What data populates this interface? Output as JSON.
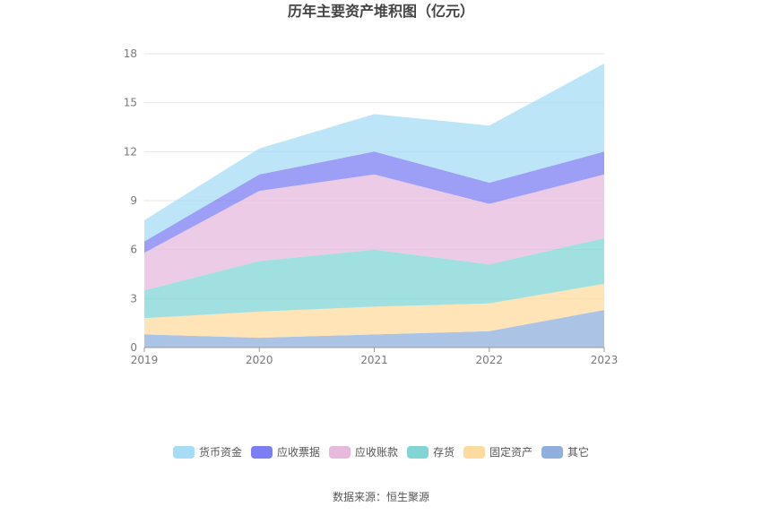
{
  "chart_data": {
    "type": "area",
    "stacked": true,
    "title": "历年主要资产堆积图（亿元）",
    "xlabel": "",
    "ylabel": "",
    "categories": [
      "2019",
      "2020",
      "2021",
      "2022",
      "2023"
    ],
    "ylim": [
      0,
      18
    ],
    "yticks": [
      0,
      3,
      6,
      9,
      12,
      15,
      18
    ],
    "grid": true,
    "legend_position": "bottom",
    "series": [
      {
        "name": "其它",
        "color": "#8fb0dc",
        "values": [
          0.8,
          0.6,
          0.8,
          1.0,
          2.3
        ]
      },
      {
        "name": "固定资产",
        "color": "#fddb9e",
        "values": [
          1.0,
          1.6,
          1.7,
          1.7,
          1.6
        ]
      },
      {
        "name": "存货",
        "color": "#82d5d5",
        "values": [
          1.7,
          3.1,
          3.5,
          2.4,
          2.8
        ]
      },
      {
        "name": "应收账款",
        "color": "#e6b9dd",
        "values": [
          2.3,
          4.3,
          4.6,
          3.7,
          3.9
        ]
      },
      {
        "name": "应收票据",
        "color": "#7b7ff2",
        "values": [
          0.7,
          1.0,
          1.4,
          1.3,
          1.4
        ]
      },
      {
        "name": "货币资金",
        "color": "#a6dcf6",
        "values": [
          1.3,
          1.6,
          2.3,
          3.5,
          5.4
        ]
      }
    ],
    "legend_order": [
      "货币资金",
      "应收票据",
      "应收账款",
      "存货",
      "固定资产",
      "其它"
    ]
  },
  "source_label": "数据来源：恒生聚源"
}
